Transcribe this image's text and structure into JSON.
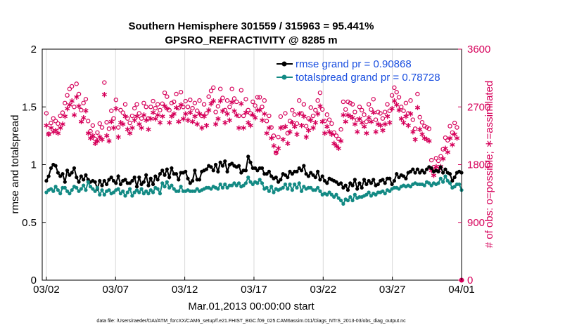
{
  "chart_data": {
    "type": "line",
    "title": "Southern Hemisphere 301559 / 315963 = 95.441%",
    "subtitle": "GPSRO_REFRACTIVITY @ 8285 m",
    "xlabel": "Mar.01,2013 00:00:00 start",
    "ylabel": "rmse and totalspread",
    "y2label": "# of obs: o=possible; ∗=assimilated",
    "footer": "data file: /Users/raeder/DAI/ATM_forcXX/CAM6_setup/f.e21.FHIST_BGC.f09_025.CAM6assim.011/Diags_NTrS_2013-03/obs_diag_output.nc",
    "x_tick_labels": [
      "03/02",
      "03/07",
      "03/12",
      "03/17",
      "03/22",
      "03/27",
      "04/01"
    ],
    "x_tick_days": [
      1,
      6,
      11,
      16,
      21,
      26,
      31
    ],
    "xlim_days": [
      0.7,
      31.0
    ],
    "ylim": [
      0,
      2
    ],
    "y_ticks": [
      "0",
      "0.5",
      "1",
      "1.5",
      "2"
    ],
    "y2lim": [
      0,
      3600
    ],
    "y2_ticks": [
      "0",
      "900",
      "1800",
      "2700",
      "3600"
    ],
    "grid": "vertical",
    "legend_position": "top-right",
    "series": [
      {
        "name": "rmse grand pr = 0.90868",
        "color": "#000000",
        "marker": "circle",
        "axis": "left",
        "values": [
          0.86,
          0.9,
          0.97,
          1.0,
          0.99,
          0.93,
          0.9,
          0.92,
          0.85,
          0.95,
          0.91,
          0.93,
          0.97,
          0.89,
          0.85,
          0.9,
          0.87,
          0.91,
          0.87,
          0.85,
          0.86,
          0.85,
          0.79,
          0.86,
          0.82,
          0.86,
          0.83,
          0.87,
          0.89,
          0.86,
          0.84,
          0.9,
          0.83,
          0.86,
          0.87,
          0.84,
          0.84,
          0.86,
          0.89,
          0.81,
          0.89,
          0.83,
          0.85,
          0.91,
          0.82,
          0.88,
          0.83,
          0.9,
          0.87,
          0.92,
          0.95,
          0.91,
          0.96,
          0.89,
          0.97,
          0.92,
          0.92,
          0.87,
          0.93,
          0.93,
          0.94,
          0.88,
          0.84,
          0.86,
          0.95,
          0.87,
          0.87,
          0.94,
          0.95,
          0.96,
          0.99,
          0.98,
          0.95,
          1.0,
          0.94,
          1.02,
          0.99,
          1.03,
          0.94,
          1.0,
          1.01,
          0.99,
          0.98,
          0.99,
          0.93,
          0.95,
          0.95,
          1.07,
          1.02,
          0.97,
          0.97,
          0.95,
          0.97,
          0.97,
          0.92,
          0.92,
          0.94,
          0.9,
          0.88,
          0.89,
          0.85,
          0.87,
          0.92,
          0.91,
          0.89,
          0.94,
          0.92,
          0.94,
          0.94,
          0.97,
          0.95,
          0.99,
          0.92,
          0.9,
          0.93,
          0.91,
          0.89,
          0.94,
          0.87,
          0.9,
          0.86,
          0.84,
          0.88,
          0.87,
          0.86,
          0.85,
          0.83,
          0.84,
          0.8,
          0.82,
          0.78,
          0.84,
          0.82,
          0.87,
          0.79,
          0.84,
          0.8,
          0.87,
          0.83,
          0.86,
          0.84,
          0.87,
          0.82,
          0.83,
          0.86,
          0.87,
          0.84,
          0.88,
          0.88,
          0.83,
          0.86,
          0.92,
          0.89,
          0.91,
          0.9,
          0.88,
          0.93,
          0.94,
          0.96,
          0.93,
          0.96,
          0.93,
          0.95,
          0.93,
          0.96,
          0.98,
          0.97,
          0.94,
          0.95,
          0.94,
          0.98,
          0.93,
          0.96,
          0.93,
          0.92,
          0.86,
          0.89,
          0.93,
          0.94,
          0.93
        ]
      },
      {
        "name": "totalspread grand pr = 0.78728",
        "color": "#138a84",
        "marker": "circle",
        "axis": "left",
        "values": [
          0.76,
          0.78,
          0.79,
          0.77,
          0.81,
          0.78,
          0.75,
          0.8,
          0.8,
          0.77,
          0.75,
          0.78,
          0.81,
          0.8,
          0.77,
          0.79,
          0.82,
          0.78,
          0.85,
          0.81,
          0.79,
          0.77,
          0.8,
          0.74,
          0.78,
          0.74,
          0.77,
          0.78,
          0.75,
          0.76,
          0.78,
          0.79,
          0.75,
          0.77,
          0.73,
          0.76,
          0.79,
          0.73,
          0.76,
          0.78,
          0.76,
          0.79,
          0.75,
          0.77,
          0.75,
          0.78,
          0.76,
          0.8,
          0.79,
          0.75,
          0.84,
          0.81,
          0.85,
          0.8,
          0.82,
          0.79,
          0.77,
          0.77,
          0.81,
          0.77,
          0.77,
          0.78,
          0.77,
          0.77,
          0.77,
          0.79,
          0.77,
          0.78,
          0.79,
          0.8,
          0.8,
          0.79,
          0.81,
          0.8,
          0.79,
          0.83,
          0.8,
          0.83,
          0.8,
          0.82,
          0.82,
          0.84,
          0.82,
          0.84,
          0.81,
          0.82,
          0.84,
          0.89,
          0.85,
          0.83,
          0.85,
          0.84,
          0.87,
          0.84,
          0.79,
          0.8,
          0.77,
          0.81,
          0.76,
          0.79,
          0.78,
          0.79,
          0.8,
          0.83,
          0.79,
          0.83,
          0.78,
          0.83,
          0.8,
          0.84,
          0.77,
          0.81,
          0.79,
          0.8,
          0.8,
          0.78,
          0.78,
          0.8,
          0.77,
          0.74,
          0.75,
          0.74,
          0.76,
          0.74,
          0.72,
          0.74,
          0.71,
          0.69,
          0.66,
          0.7,
          0.69,
          0.72,
          0.69,
          0.74,
          0.71,
          0.72,
          0.72,
          0.73,
          0.74,
          0.76,
          0.73,
          0.75,
          0.74,
          0.76,
          0.76,
          0.77,
          0.75,
          0.78,
          0.77,
          0.79,
          0.8,
          0.8,
          0.79,
          0.81,
          0.82,
          0.81,
          0.82,
          0.81,
          0.83,
          0.84,
          0.83,
          0.83,
          0.83,
          0.82,
          0.85,
          0.84,
          0.82,
          0.84,
          0.83,
          0.84,
          0.88,
          0.85,
          0.9,
          0.86,
          0.84,
          0.8,
          0.81,
          0.83,
          0.83,
          0.78
        ]
      },
      {
        "name": "possible",
        "color": "#d6005a",
        "marker": "open-circle",
        "axis": "right",
        "values": [
          2600,
          2280,
          2450,
          2520,
          2480,
          2440,
          2560,
          2610,
          2760,
          2880,
          2980,
          3020,
          2700,
          3060,
          2900,
          2650,
          2760,
          2820,
          2480,
          2320,
          2410,
          2200,
          2300,
          2440,
          2380,
          3080,
          2460,
          2360,
          2640,
          2520,
          2810,
          2380,
          2650,
          2610,
          2740,
          2520,
          2450,
          2560,
          2680,
          2740,
          2600,
          2520,
          2760,
          2700,
          2520,
          2700,
          2790,
          2680,
          2740,
          2650,
          2750,
          2920,
          2860,
          2650,
          2760,
          2780,
          2900,
          2680,
          2930,
          2700,
          2790,
          2700,
          2810,
          2680,
          2760,
          2640,
          2800,
          2560,
          2740,
          2600,
          2860,
          2950,
          3000,
          2620,
          2710,
          2980,
          2840,
          2650,
          2800,
          2700,
          2980,
          2830,
          2780,
          2560,
          2960,
          2560,
          2820,
          2650,
          2600,
          2780,
          2720,
          2850,
          2850,
          2700,
          2800,
          2480,
          2560,
          2380,
          2250,
          1980,
          2230,
          2550,
          2380,
          2600,
          2290,
          2480,
          2650,
          2580,
          2440,
          2800,
          2600,
          2740,
          2400,
          2520,
          2690,
          2560,
          2650,
          2800,
          2920,
          2660,
          2480,
          2580,
          2500,
          2440,
          2300,
          2250,
          2200,
          2350,
          2780,
          2660,
          2780,
          2760,
          2740,
          2620,
          2500,
          2700,
          2650,
          2580,
          2470,
          2740,
          2660,
          2820,
          2500,
          2620,
          2600,
          2520,
          2620,
          2740,
          2640,
          2880,
          3000,
          2930,
          2850,
          2700,
          2640,
          2760,
          2600,
          2800,
          2500,
          2360,
          2900,
          2540,
          2460,
          2400,
          2380,
          2360,
          1870,
          1760,
          1900,
          1860,
          1930,
          2040,
          2220,
          2180,
          2400,
          2300,
          2450,
          2380
        ]
      },
      {
        "name": "assimilated",
        "color": "#d6005a",
        "marker": "asterisk",
        "axis": "right",
        "values": [
          2420,
          2280,
          2380,
          2320,
          2340,
          2300,
          2380,
          2440,
          2560,
          2680,
          2740,
          2800,
          2580,
          2860,
          2720,
          2480,
          2540,
          2650,
          2300,
          2220,
          2260,
          2140,
          2180,
          2240,
          2200,
          2900,
          2260,
          2180,
          2480,
          2380,
          2680,
          2240,
          2460,
          2440,
          2560,
          2360,
          2300,
          2380,
          2500,
          2560,
          2440,
          2380,
          2580,
          2500,
          2360,
          2520,
          2620,
          2520,
          2580,
          2460,
          2560,
          2720,
          2680,
          2460,
          2560,
          2600,
          2700,
          2480,
          2740,
          2520,
          2600,
          2500,
          2620,
          2480,
          2560,
          2440,
          2600,
          2380,
          2560,
          2420,
          2660,
          2760,
          2800,
          2440,
          2520,
          2800,
          2640,
          2460,
          2600,
          2500,
          2780,
          2640,
          2580,
          2380,
          2760,
          2380,
          2620,
          2460,
          2420,
          2580,
          2540,
          2660,
          2660,
          2500,
          2600,
          2300,
          2380,
          2220,
          2100,
          2000,
          2060,
          2380,
          2200,
          2400,
          2140,
          2320,
          2460,
          2400,
          2280,
          2600,
          2420,
          2560,
          2240,
          2340,
          2500,
          2380,
          2460,
          2600,
          2720,
          2480,
          2300,
          2400,
          2320,
          2280,
          2140,
          2100,
          2060,
          2180,
          2580,
          2480,
          2580,
          2560,
          2540,
          2440,
          2320,
          2520,
          2460,
          2400,
          2300,
          2540,
          2480,
          2620,
          2320,
          2440,
          2420,
          2340,
          2440,
          2560,
          2460,
          2680,
          2800,
          2740,
          2660,
          2520,
          2460,
          2560,
          2420,
          2600,
          2320,
          2200,
          2700,
          2360,
          2280,
          2220,
          2200,
          2180,
          1720,
          1640,
          1780,
          1720,
          1780,
          1900,
          2060,
          2000,
          2220,
          2120,
          2280,
          2220
        ]
      }
    ]
  }
}
